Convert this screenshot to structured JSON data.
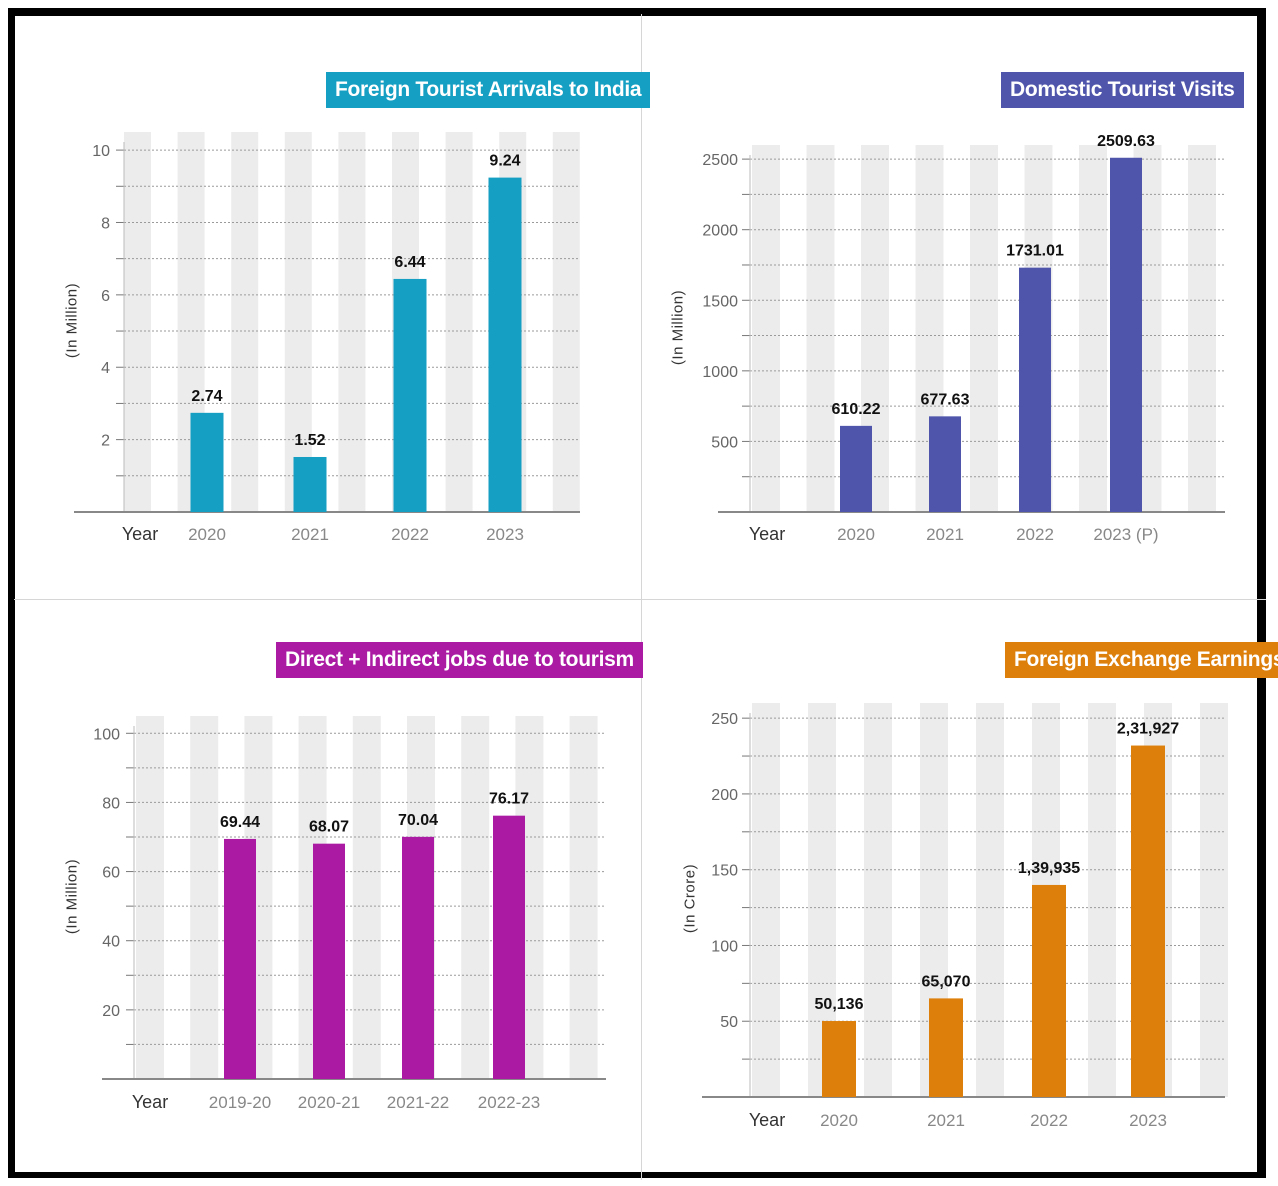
{
  "colors": {
    "teal": "#159fc3",
    "indigo": "#4f55ab",
    "magenta": "#aa1aa3",
    "orange": "#dd7f0b",
    "stripe": "#ececec"
  },
  "chart_data": [
    {
      "type": "bar",
      "title": "Foreign Tourist Arrivals to India",
      "ylabel": "(In Million)",
      "xlabel": "Year",
      "categories": [
        "2020",
        "2021",
        "2022",
        "2023"
      ],
      "values": [
        2.74,
        1.52,
        6.44,
        9.24
      ],
      "value_labels": [
        "2.74",
        "1.52",
        "6.44",
        "9.24"
      ],
      "yticks": [
        2,
        4,
        6,
        8,
        10
      ],
      "ylim": [
        0,
        10.5
      ],
      "grid": "dotted horizontal"
    },
    {
      "type": "bar",
      "title": "Domestic Tourist Visits",
      "ylabel": "(In Million)",
      "xlabel": "Year",
      "categories": [
        "2020",
        "2021",
        "2022",
        "2023 (P)"
      ],
      "values": [
        610.22,
        677.63,
        1731.01,
        2509.63
      ],
      "value_labels": [
        "610.22",
        "677.63",
        "1731.01",
        "2509.63"
      ],
      "yticks": [
        500,
        1000,
        1500,
        2000,
        2500
      ],
      "ylim": [
        0,
        2600
      ],
      "grid": "dotted horizontal"
    },
    {
      "type": "bar",
      "title": "Direct + Indirect jobs due to tourism",
      "ylabel": "(In Million)",
      "xlabel": "Year",
      "categories": [
        "2019-20",
        "2020-21",
        "2021-22",
        "2022-23"
      ],
      "values": [
        69.44,
        68.07,
        70.04,
        76.17
      ],
      "value_labels": [
        "69.44",
        "68.07",
        "70.04",
        "76.17"
      ],
      "yticks": [
        20,
        40,
        60,
        80,
        100
      ],
      "ylim": [
        0,
        105
      ],
      "grid": "dotted horizontal"
    },
    {
      "type": "bar",
      "title": "Foreign Exchange Earnings",
      "ylabel": "(In Crore)",
      "xlabel": "Year",
      "categories": [
        "2020",
        "2021",
        "2022",
        "2023"
      ],
      "values": [
        50136,
        65070,
        139935,
        231927
      ],
      "value_labels": [
        "50,136",
        "65,070",
        "1,39,935",
        "2,31,927"
      ],
      "yticks": [
        50,
        100,
        150,
        200,
        250
      ],
      "ytick_unit_multiplier": 1000,
      "ylim": [
        0,
        260
      ],
      "grid": "dotted horizontal"
    }
  ]
}
